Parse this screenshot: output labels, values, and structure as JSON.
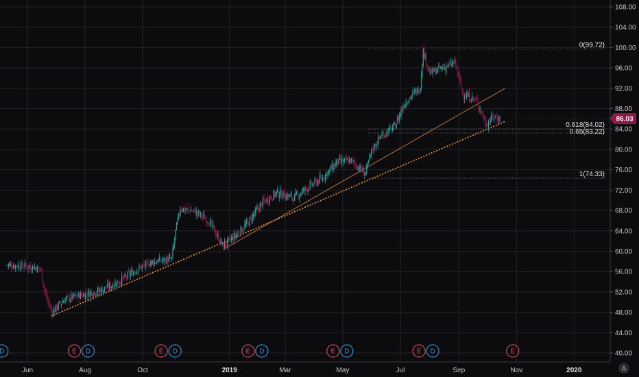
{
  "chart_data": {
    "type": "candlestick",
    "y_axis": {
      "ticks": [
        "108.00",
        "104.00",
        "100.00",
        "96.00",
        "92.00",
        "88.00",
        "84.00",
        "80.00",
        "76.00",
        "72.00",
        "68.00",
        "64.00",
        "60.00",
        "56.00",
        "52.00",
        "48.00",
        "44.00",
        "40.00"
      ],
      "ylim": [
        39,
        109
      ],
      "side": "right"
    },
    "x_axis": {
      "ticks": [
        "Jun",
        "Aug",
        "Oct",
        "2019",
        "Mar",
        "May",
        "Jul",
        "Sep",
        "Nov",
        "2020"
      ]
    },
    "current_price": {
      "value": 86.03,
      "label": "86.03",
      "color": "#8e1a4a"
    },
    "series_close_points": [
      {
        "x": "2018-05-10",
        "y": 57.3
      },
      {
        "x": "2018-06-05",
        "y": 57.0
      },
      {
        "x": "2018-06-15",
        "y": 56.5
      },
      {
        "x": "2018-06-20",
        "y": 51.5
      },
      {
        "x": "2018-06-27",
        "y": 48.0
      },
      {
        "x": "2018-07-10",
        "y": 50.5
      },
      {
        "x": "2018-07-31",
        "y": 51.5
      },
      {
        "x": "2018-08-20",
        "y": 52.5
      },
      {
        "x": "2018-09-10",
        "y": 54.5
      },
      {
        "x": "2018-09-25",
        "y": 56.5
      },
      {
        "x": "2018-10-10",
        "y": 57.8
      },
      {
        "x": "2018-11-01",
        "y": 58.5
      },
      {
        "x": "2018-11-05",
        "y": 64.0
      },
      {
        "x": "2018-11-10",
        "y": 68.5
      },
      {
        "x": "2018-11-25",
        "y": 67.8
      },
      {
        "x": "2018-12-10",
        "y": 66.0
      },
      {
        "x": "2018-12-25",
        "y": 61.0
      },
      {
        "x": "2019-01-10",
        "y": 63.5
      },
      {
        "x": "2019-01-20",
        "y": 65.5
      },
      {
        "x": "2019-02-05",
        "y": 69.5
      },
      {
        "x": "2019-02-20",
        "y": 71.5
      },
      {
        "x": "2019-03-10",
        "y": 70.5
      },
      {
        "x": "2019-03-25",
        "y": 72.5
      },
      {
        "x": "2019-04-10",
        "y": 74.5
      },
      {
        "x": "2019-04-25",
        "y": 77.5
      },
      {
        "x": "2019-05-10",
        "y": 77.8
      },
      {
        "x": "2019-05-25",
        "y": 75.2
      },
      {
        "x": "2019-06-01",
        "y": 80.0
      },
      {
        "x": "2019-06-10",
        "y": 82.5
      },
      {
        "x": "2019-06-25",
        "y": 84.5
      },
      {
        "x": "2019-07-05",
        "y": 89.0
      },
      {
        "x": "2019-07-15",
        "y": 91.0
      },
      {
        "x": "2019-07-22",
        "y": 92.0
      },
      {
        "x": "2019-07-25",
        "y": 99.5
      },
      {
        "x": "2019-08-01",
        "y": 95.0
      },
      {
        "x": "2019-08-15",
        "y": 96.0
      },
      {
        "x": "2019-08-28",
        "y": 97.0
      },
      {
        "x": "2019-09-05",
        "y": 91.0
      },
      {
        "x": "2019-09-20",
        "y": 89.5
      },
      {
        "x": "2019-09-30",
        "y": 85.0
      },
      {
        "x": "2019-10-08",
        "y": 86.5
      },
      {
        "x": "2019-10-15",
        "y": 86.03
      }
    ],
    "fibonacci_levels": [
      {
        "label": "0(99.72)",
        "value": 99.72
      },
      {
        "label": "0.618(84.02)",
        "value": 84.02
      },
      {
        "label": "0.65(83.22)",
        "value": 83.22
      },
      {
        "label": "1(74.33)",
        "value": 74.33
      }
    ],
    "trendlines": [
      {
        "style": "dotted",
        "color": "#e8923a",
        "from": {
          "x": "2018-06-27",
          "y": 47.3
        },
        "to": {
          "x": "2019-10-20",
          "y": 85.5
        }
      },
      {
        "style": "thin",
        "color": "#c87a3a",
        "from": {
          "x": "2018-12-25",
          "y": 60.3
        },
        "to": {
          "x": "2019-10-20",
          "y": 92.0
        }
      }
    ],
    "events": [
      {
        "x": "2018-05-05",
        "labels": [
          "D"
        ]
      },
      {
        "x": "2018-07-28",
        "labels": [
          "E",
          "D"
        ]
      },
      {
        "x": "2018-10-28",
        "labels": [
          "E",
          "D"
        ]
      },
      {
        "x": "2019-01-28",
        "labels": [
          "E",
          "D"
        ]
      },
      {
        "x": "2019-04-28",
        "labels": [
          "E",
          "D"
        ]
      },
      {
        "x": "2019-07-28",
        "labels": [
          "E",
          "D"
        ]
      },
      {
        "x": "2019-10-28",
        "labels": [
          "E"
        ]
      }
    ],
    "colors": {
      "up": "#26a69a",
      "down": "#8e1a4a",
      "earnings": "#d04a5a",
      "dividend": "#3a8ed4",
      "grid": "#23232b",
      "fib_line": "#7a7a7a"
    },
    "corner_badge": "A"
  }
}
